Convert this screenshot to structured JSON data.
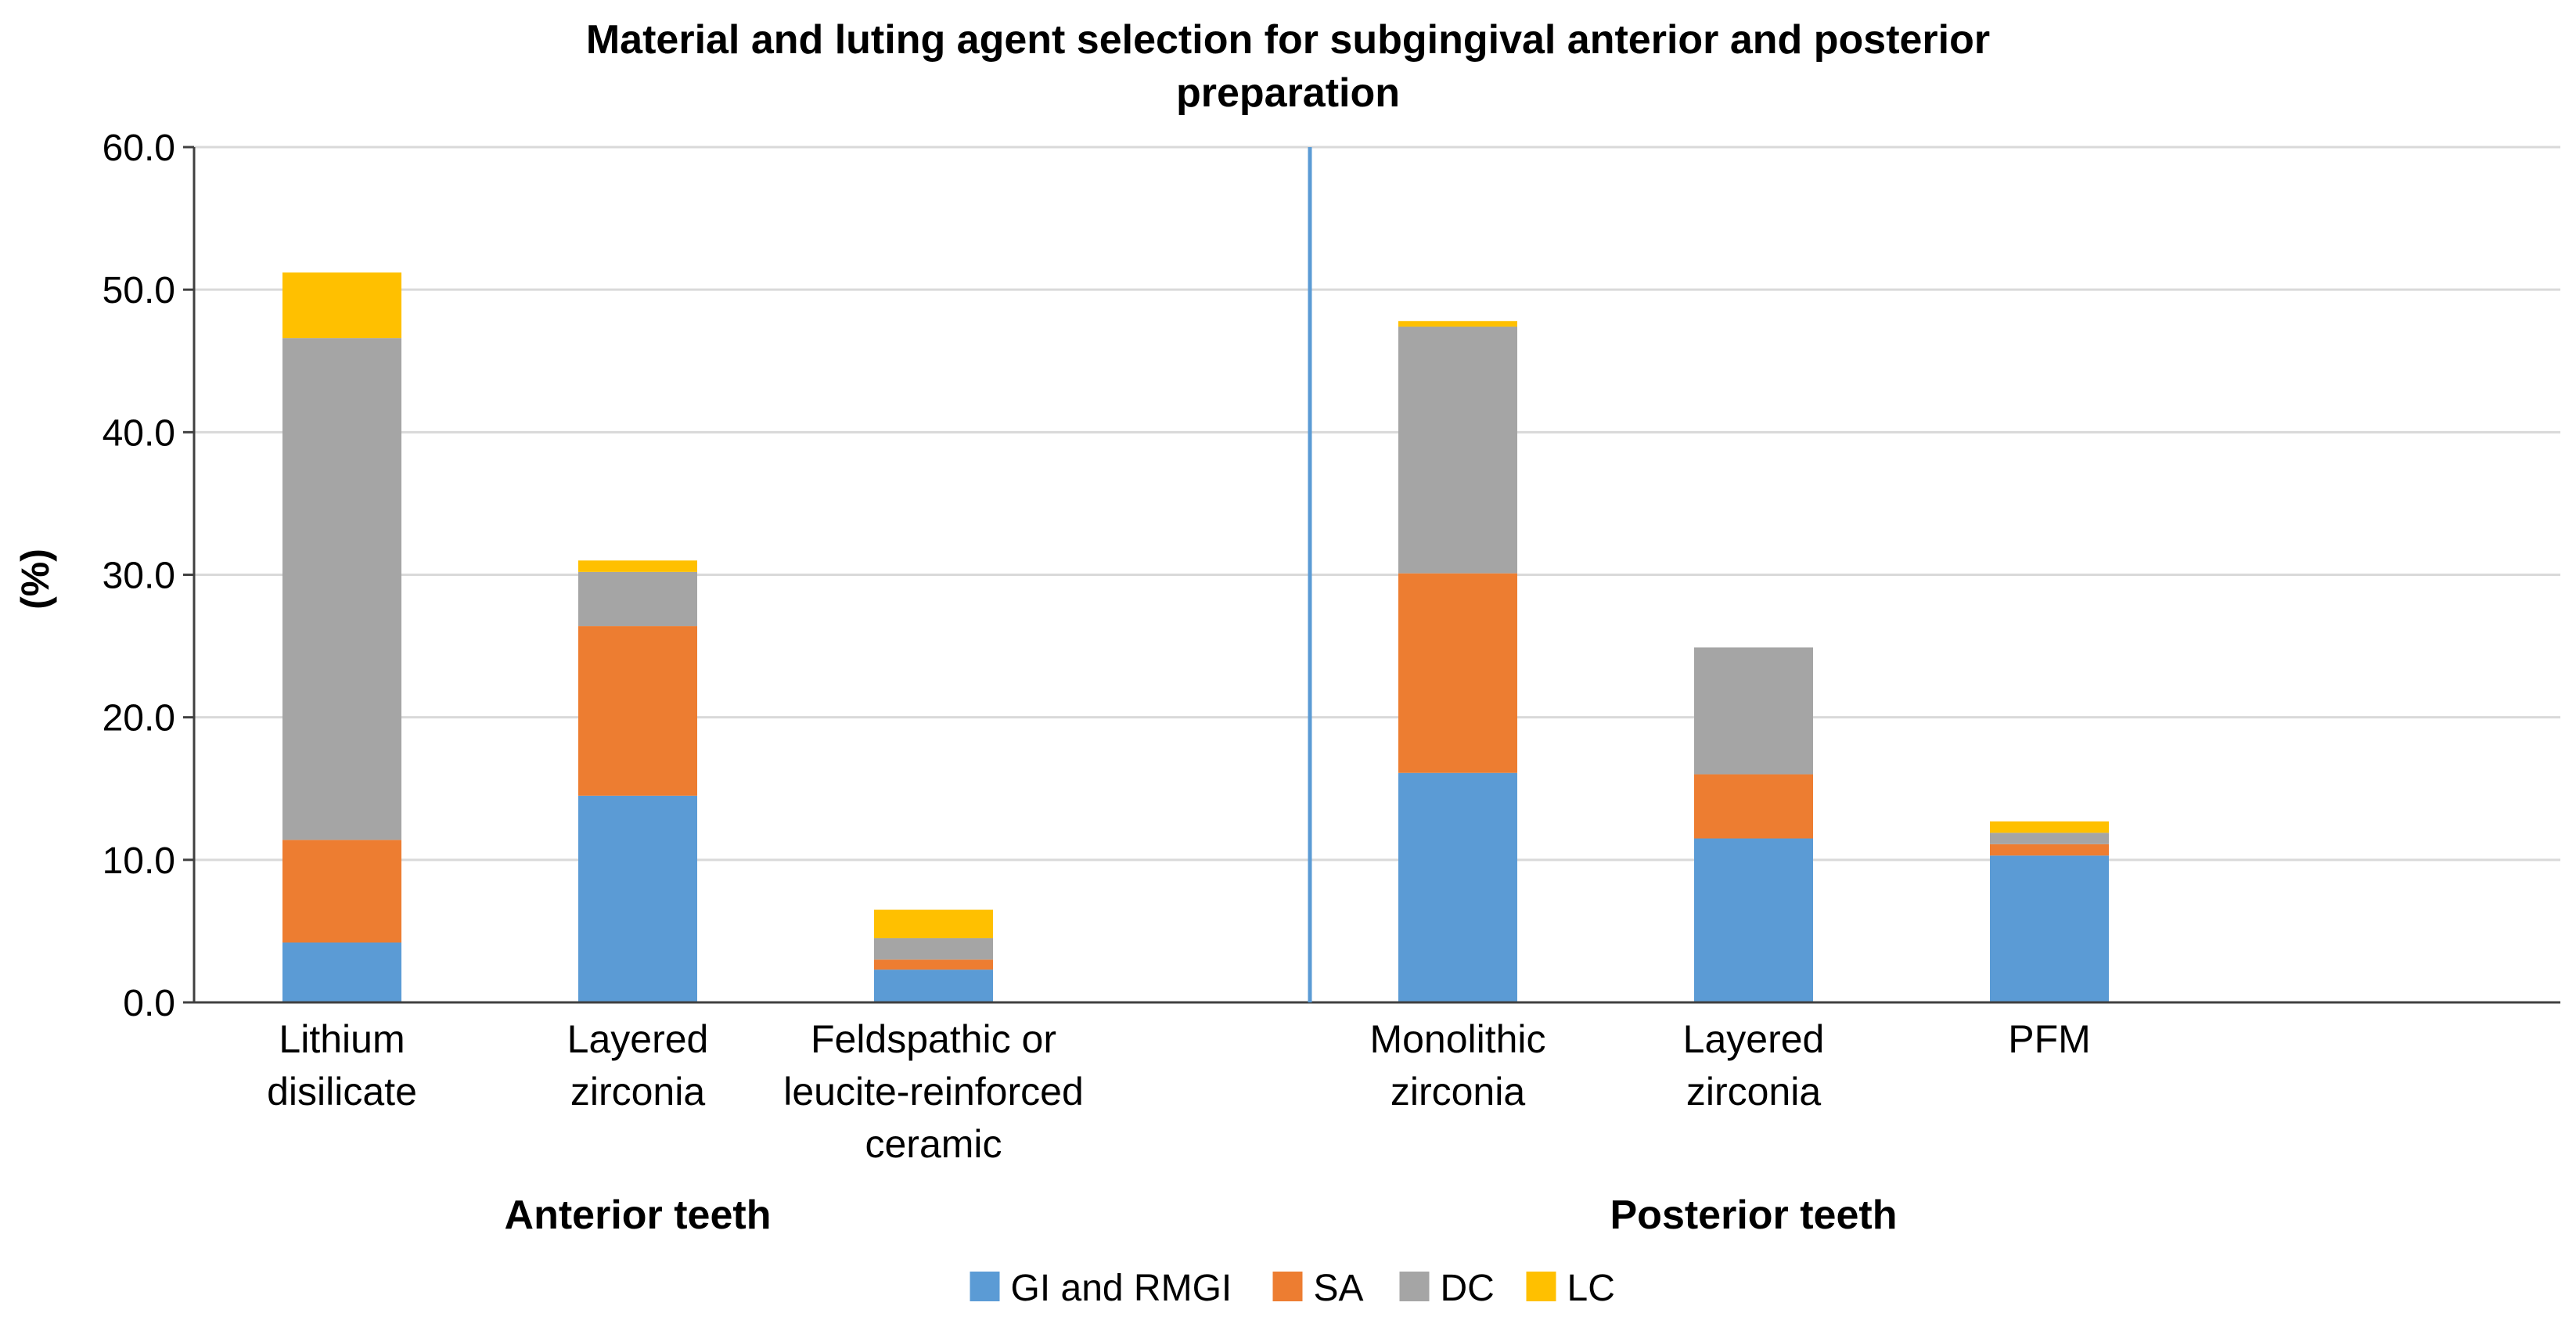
{
  "chart_data": {
    "type": "bar",
    "stacked": true,
    "title_lines": [
      "Material and luting agent selection for subgingival anterior and posterior",
      "preparation"
    ],
    "ylabel": "(%)",
    "ylim": [
      0,
      60
    ],
    "yticks": [
      "0.0",
      "10.0",
      "20.0",
      "30.0",
      "40.0",
      "50.0",
      "60.0"
    ],
    "grid": true,
    "groups": [
      {
        "label": "Anterior teeth",
        "categories": [
          {
            "lines": [
              "Lithium",
              "disilicate"
            ],
            "values": [
              4.2,
              7.2,
              35.2,
              4.6
            ]
          },
          {
            "lines": [
              "Layered",
              "zirconia"
            ],
            "values": [
              14.5,
              11.9,
              3.8,
              0.8
            ]
          },
          {
            "lines": [
              "Feldspathic or",
              "leucite-reinforced",
              "ceramic"
            ],
            "values": [
              2.3,
              0.7,
              1.5,
              2.0
            ]
          }
        ]
      },
      {
        "label": "Posterior teeth",
        "categories": [
          {
            "lines": [
              "Monolithic",
              "zirconia"
            ],
            "values": [
              16.1,
              14.0,
              17.3,
              0.4
            ]
          },
          {
            "lines": [
              "Layered",
              "zirconia"
            ],
            "values": [
              11.5,
              4.5,
              8.9,
              0.0
            ]
          },
          {
            "lines": [
              "PFM"
            ],
            "values": [
              10.3,
              0.8,
              0.8,
              0.8
            ]
          }
        ]
      }
    ],
    "series": [
      {
        "name": "GI and RMGI",
        "color": "#5B9BD5"
      },
      {
        "name": "SA",
        "color": "#ED7D31"
      },
      {
        "name": "DC",
        "color": "#A5A5A5"
      },
      {
        "name": "LC",
        "color": "#FFC000"
      }
    ],
    "legend_position": "bottom-center",
    "divider_color": "#5B9BD5"
  }
}
